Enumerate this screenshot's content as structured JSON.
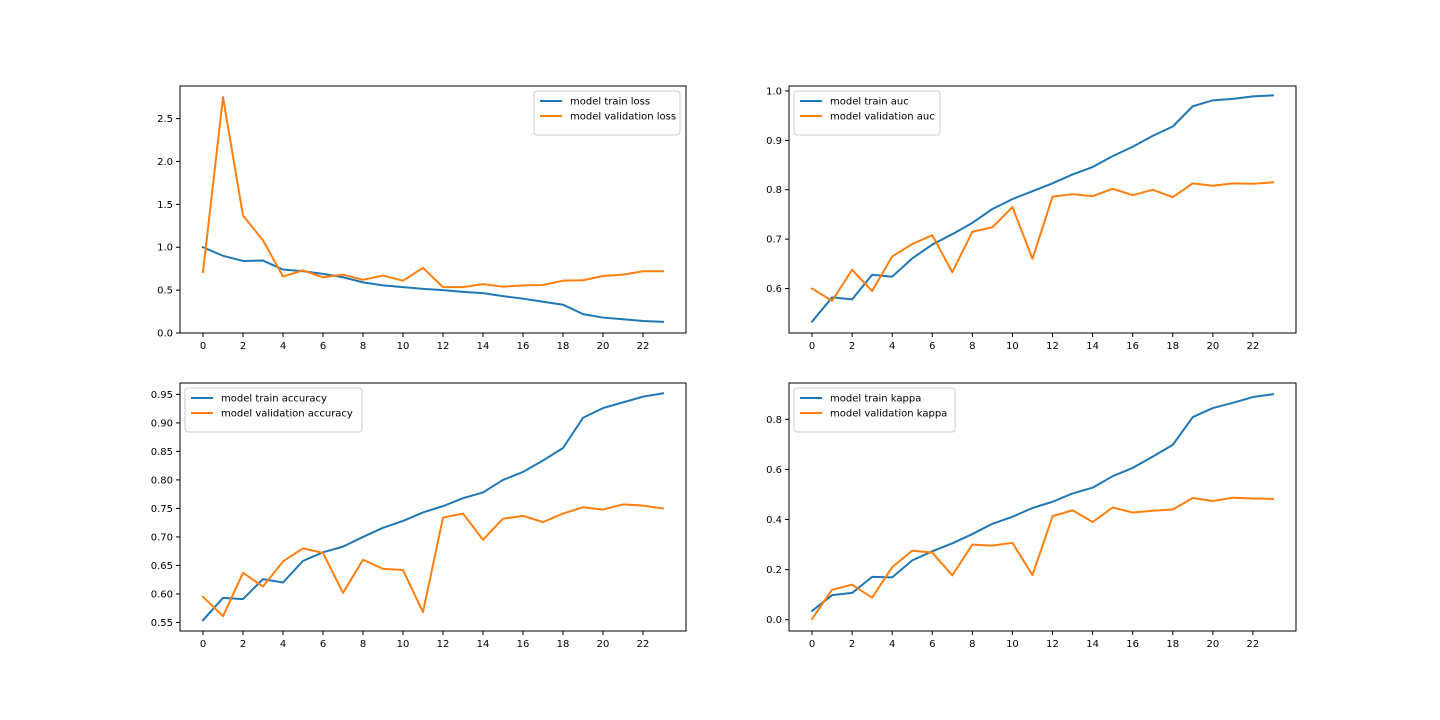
{
  "chart_data": [
    {
      "type": "line",
      "title": "",
      "xlabel": "",
      "ylabel": "",
      "xlim": [
        -1.15,
        24.15
      ],
      "ylim": [
        0,
        2.88
      ],
      "xticks": [
        0,
        2,
        4,
        6,
        8,
        10,
        12,
        14,
        16,
        18,
        20,
        22
      ],
      "yticks": [
        0.0,
        0.5,
        1.0,
        1.5,
        2.0,
        2.5
      ],
      "ytick_labels": [
        "0.0",
        "0.5",
        "1.0",
        "1.5",
        "2.0",
        "2.5"
      ],
      "legend": "top-right",
      "grid": false,
      "x": [
        0,
        1,
        2,
        3,
        4,
        5,
        6,
        7,
        8,
        9,
        10,
        11,
        12,
        13,
        14,
        15,
        16,
        17,
        18,
        19,
        20,
        21,
        22,
        23
      ],
      "series": [
        {
          "name": "model train loss",
          "color": "#1f77b4",
          "values": [
            1.0,
            0.9,
            0.84,
            0.845,
            0.74,
            0.72,
            0.69,
            0.65,
            0.59,
            0.555,
            0.535,
            0.515,
            0.5,
            0.48,
            0.465,
            0.43,
            0.4,
            0.365,
            0.33,
            0.22,
            0.18,
            0.16,
            0.14,
            0.13
          ]
        },
        {
          "name": "model validation loss",
          "color": "#ff7f0e",
          "values": [
            0.71,
            2.75,
            1.37,
            1.08,
            0.66,
            0.73,
            0.65,
            0.68,
            0.62,
            0.67,
            0.61,
            0.76,
            0.535,
            0.535,
            0.57,
            0.54,
            0.555,
            0.56,
            0.61,
            0.615,
            0.665,
            0.68,
            0.72,
            0.72
          ]
        }
      ]
    },
    {
      "type": "line",
      "title": "",
      "xlabel": "",
      "ylabel": "",
      "xlim": [
        -1.15,
        24.15
      ],
      "ylim": [
        0.51,
        1.01
      ],
      "xticks": [
        0,
        2,
        4,
        6,
        8,
        10,
        12,
        14,
        16,
        18,
        20,
        22
      ],
      "yticks": [
        0.6,
        0.7,
        0.8,
        0.9,
        1.0
      ],
      "ytick_labels": [
        "0.6",
        "0.7",
        "0.8",
        "0.9",
        "1.0"
      ],
      "legend": "top-left",
      "grid": false,
      "x": [
        0,
        1,
        2,
        3,
        4,
        5,
        6,
        7,
        8,
        9,
        10,
        11,
        12,
        13,
        14,
        15,
        16,
        17,
        18,
        19,
        20,
        21,
        22,
        23
      ],
      "series": [
        {
          "name": "model train auc",
          "color": "#1f77b4",
          "values": [
            0.533,
            0.582,
            0.578,
            0.628,
            0.624,
            0.661,
            0.689,
            0.71,
            0.733,
            0.761,
            0.781,
            0.797,
            0.813,
            0.831,
            0.846,
            0.868,
            0.887,
            0.909,
            0.928,
            0.969,
            0.981,
            0.984,
            0.989,
            0.991
          ]
        },
        {
          "name": "model validation auc",
          "color": "#ff7f0e",
          "values": [
            0.6,
            0.575,
            0.638,
            0.595,
            0.665,
            0.69,
            0.708,
            0.633,
            0.715,
            0.724,
            0.765,
            0.66,
            0.786,
            0.791,
            0.787,
            0.802,
            0.789,
            0.8,
            0.785,
            0.813,
            0.808,
            0.813,
            0.812,
            0.815
          ]
        }
      ]
    },
    {
      "type": "line",
      "title": "",
      "xlabel": "",
      "ylabel": "",
      "xlim": [
        -1.15,
        24.15
      ],
      "ylim": [
        0.535,
        0.97
      ],
      "xticks": [
        0,
        2,
        4,
        6,
        8,
        10,
        12,
        14,
        16,
        18,
        20,
        22
      ],
      "yticks": [
        0.55,
        0.6,
        0.65,
        0.7,
        0.75,
        0.8,
        0.85,
        0.9,
        0.95
      ],
      "ytick_labels": [
        "0.55",
        "0.60",
        "0.65",
        "0.70",
        "0.75",
        "0.80",
        "0.85",
        "0.90",
        "0.95"
      ],
      "legend": "top-left",
      "grid": false,
      "x": [
        0,
        1,
        2,
        3,
        4,
        5,
        6,
        7,
        8,
        9,
        10,
        11,
        12,
        13,
        14,
        15,
        16,
        17,
        18,
        19,
        20,
        21,
        22,
        23
      ],
      "series": [
        {
          "name": "model train accuracy",
          "color": "#1f77b4",
          "values": [
            0.554,
            0.593,
            0.591,
            0.626,
            0.62,
            0.658,
            0.673,
            0.683,
            0.7,
            0.716,
            0.728,
            0.743,
            0.754,
            0.768,
            0.778,
            0.8,
            0.814,
            0.834,
            0.856,
            0.909,
            0.926,
            0.936,
            0.946,
            0.952
          ]
        },
        {
          "name": "model validation accuracy",
          "color": "#ff7f0e",
          "values": [
            0.595,
            0.561,
            0.637,
            0.613,
            0.657,
            0.68,
            0.672,
            0.602,
            0.66,
            0.644,
            0.642,
            0.568,
            0.734,
            0.741,
            0.695,
            0.732,
            0.737,
            0.726,
            0.741,
            0.752,
            0.748,
            0.757,
            0.755,
            0.75
          ]
        }
      ]
    },
    {
      "type": "line",
      "title": "",
      "xlabel": "",
      "ylabel": "",
      "xlim": [
        -1.15,
        24.15
      ],
      "ylim": [
        -0.045,
        0.945
      ],
      "xticks": [
        0,
        2,
        4,
        6,
        8,
        10,
        12,
        14,
        16,
        18,
        20,
        22
      ],
      "yticks": [
        0.0,
        0.2,
        0.4,
        0.6,
        0.8
      ],
      "ytick_labels": [
        "0.0",
        "0.2",
        "0.4",
        "0.6",
        "0.8"
      ],
      "legend": "top-left",
      "grid": false,
      "x": [
        0,
        1,
        2,
        3,
        4,
        5,
        6,
        7,
        8,
        9,
        10,
        11,
        12,
        13,
        14,
        15,
        16,
        17,
        18,
        19,
        20,
        21,
        22,
        23
      ],
      "series": [
        {
          "name": "model train kappa",
          "color": "#1f77b4",
          "values": [
            0.035,
            0.098,
            0.107,
            0.171,
            0.169,
            0.237,
            0.273,
            0.305,
            0.342,
            0.383,
            0.411,
            0.446,
            0.471,
            0.504,
            0.527,
            0.573,
            0.606,
            0.651,
            0.698,
            0.809,
            0.845,
            0.866,
            0.889,
            0.9
          ]
        },
        {
          "name": "model validation kappa",
          "color": "#ff7f0e",
          "values": [
            0.003,
            0.12,
            0.14,
            0.088,
            0.21,
            0.276,
            0.268,
            0.177,
            0.3,
            0.296,
            0.307,
            0.178,
            0.413,
            0.437,
            0.39,
            0.448,
            0.428,
            0.435,
            0.44,
            0.486,
            0.474,
            0.487,
            0.484,
            0.482
          ]
        }
      ]
    }
  ]
}
